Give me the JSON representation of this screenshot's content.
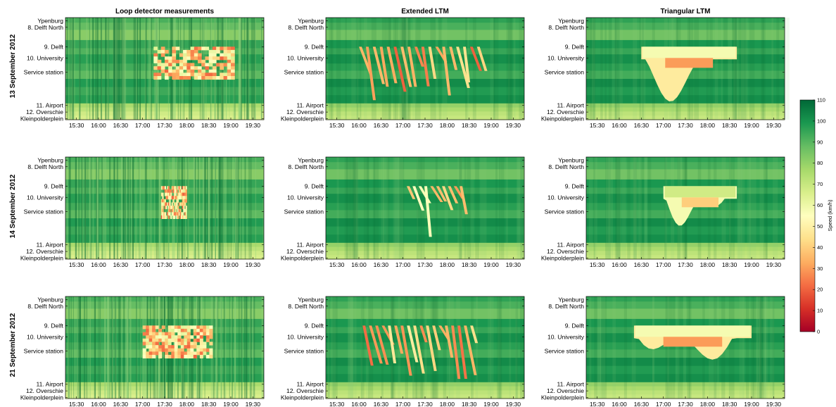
{
  "chart_data": {
    "type": "heatmap",
    "column_titles": [
      "Loop detector measurements",
      "Extended LTM",
      "Triangular LTM"
    ],
    "row_titles": [
      "13 September 2012",
      "14 September 2012",
      "21 September 2012"
    ],
    "x_ticks": [
      "15:30",
      "16:00",
      "16:30",
      "17:00",
      "17:30",
      "18:00",
      "18:30",
      "19:00",
      "19:30"
    ],
    "x_range": [
      "15:15",
      "19:45"
    ],
    "y_ticks": [
      "Ypenburg",
      "8. Delft North",
      "9. Delft",
      "10. University",
      "Service station",
      "11. Airport",
      "12. Overschie",
      "Kleinpolderplein"
    ],
    "colorbar": {
      "label": "Speed (km/h)",
      "ticks": [
        0,
        10,
        20,
        30,
        40,
        50,
        60,
        70,
        80,
        90,
        100,
        110
      ],
      "range": [
        0,
        110
      ],
      "colormap": "RdYlGn",
      "colors": [
        "#a50026",
        "#d73027",
        "#f46d43",
        "#fdae61",
        "#fee08b",
        "#ffffbf",
        "#d9ef8b",
        "#a6d96a",
        "#66bd63",
        "#1a9850",
        "#006837"
      ]
    },
    "congestion_regions": [
      [
        {
          "from": "17:15",
          "to": "19:05",
          "top": "9. Delft",
          "bottom": "Service station",
          "min_speed": 20
        },
        {
          "from": "16:00",
          "to": "18:50",
          "top": "9. Delft",
          "bottom": "Service station",
          "min_speed": 20
        },
        {
          "from": "16:30",
          "to": "18:40",
          "top": "9. Delft",
          "bottom": "Service station",
          "min_speed": 30
        }
      ],
      [
        {
          "from": "17:25",
          "to": "18:00",
          "top": "9. Delft",
          "bottom": "Service station",
          "min_speed": 20
        },
        {
          "from": "17:05",
          "to": "18:25",
          "top": "9. Delft",
          "bottom": "Service station",
          "min_speed": 30
        },
        {
          "from": "17:00",
          "to": "18:40",
          "top": "9. Delft",
          "bottom": "Service station",
          "min_speed": 40
        }
      ],
      [
        {
          "from": "17:00",
          "to": "18:35",
          "top": "9. Delft",
          "bottom": "Service station",
          "min_speed": 20
        },
        {
          "from": "16:05",
          "to": "18:40",
          "top": "9. Delft",
          "bottom": "Service station",
          "min_speed": 20
        },
        {
          "from": "16:20",
          "to": "19:00",
          "top": "9. Delft",
          "bottom": "Service station",
          "min_speed": 30
        }
      ]
    ]
  }
}
